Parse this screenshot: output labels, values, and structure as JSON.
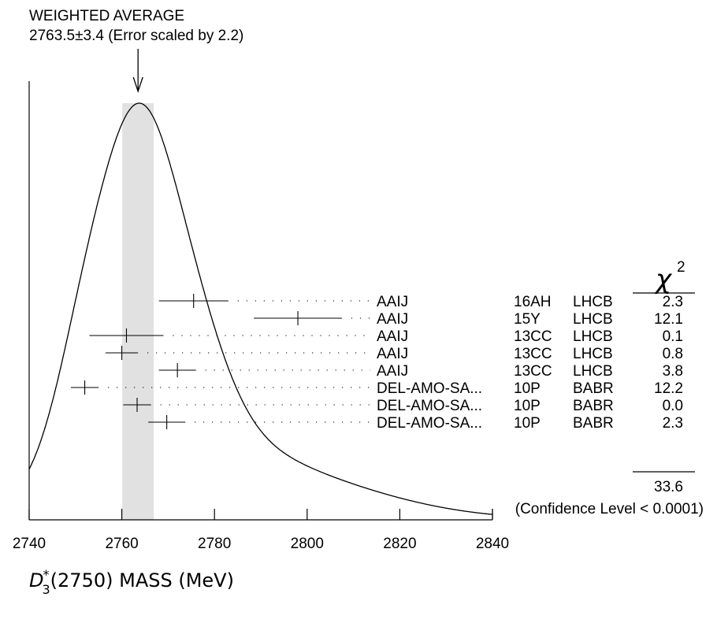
{
  "chart_data": {
    "type": "ideogram",
    "title_line1": "WEIGHTED AVERAGE",
    "title_line2": "2763.5±3.4 (Error scaled by 2.2)",
    "weighted_average": 2763.5,
    "average_error": 3.4,
    "error_scale": 2.2,
    "xlabel_symbol": "D",
    "xlabel_sup": "*",
    "xlabel_sub": "3",
    "xlabel_rest": "(2750) MASS (MeV)",
    "xlim": [
      2740,
      2840
    ],
    "xticks": [
      2740,
      2760,
      2780,
      2800,
      2820,
      2840
    ],
    "chi2_header": "χ",
    "chi2_header_sup": "2",
    "chi2_total": "33.6",
    "confidence_level": "(Confidence Level < 0.0001)",
    "measurements": [
      {
        "author": "AAIJ",
        "ref": "16AH",
        "experiment": "LHCB",
        "value": 2775.5,
        "error": 7.5,
        "chi2": "2.3"
      },
      {
        "author": "AAIJ",
        "ref": "15Y",
        "experiment": "LHCB",
        "value": 2798.0,
        "error": 9.5,
        "chi2": "12.1"
      },
      {
        "author": "AAIJ",
        "ref": "13CC",
        "experiment": "LHCB",
        "value": 2761.0,
        "error": 8.0,
        "chi2": "0.1"
      },
      {
        "author": "AAIJ",
        "ref": "13CC",
        "experiment": "LHCB",
        "value": 2760.0,
        "error": 3.5,
        "chi2": "0.8"
      },
      {
        "author": "AAIJ",
        "ref": "13CC",
        "experiment": "LHCB",
        "value": 2772.0,
        "error": 4.0,
        "chi2": "3.8"
      },
      {
        "author": "DEL-AMO-SA...",
        "ref": "10P",
        "experiment": "BABR",
        "value": 2752.0,
        "error": 3.0,
        "chi2": "12.2"
      },
      {
        "author": "DEL-AMO-SA...",
        "ref": "10P",
        "experiment": "BABR",
        "value": 2763.3,
        "error": 3.0,
        "chi2": "0.0"
      },
      {
        "author": "DEL-AMO-SA...",
        "ref": "10P",
        "experiment": "BABR",
        "value": 2769.7,
        "error": 4.0,
        "chi2": "2.3"
      }
    ]
  }
}
